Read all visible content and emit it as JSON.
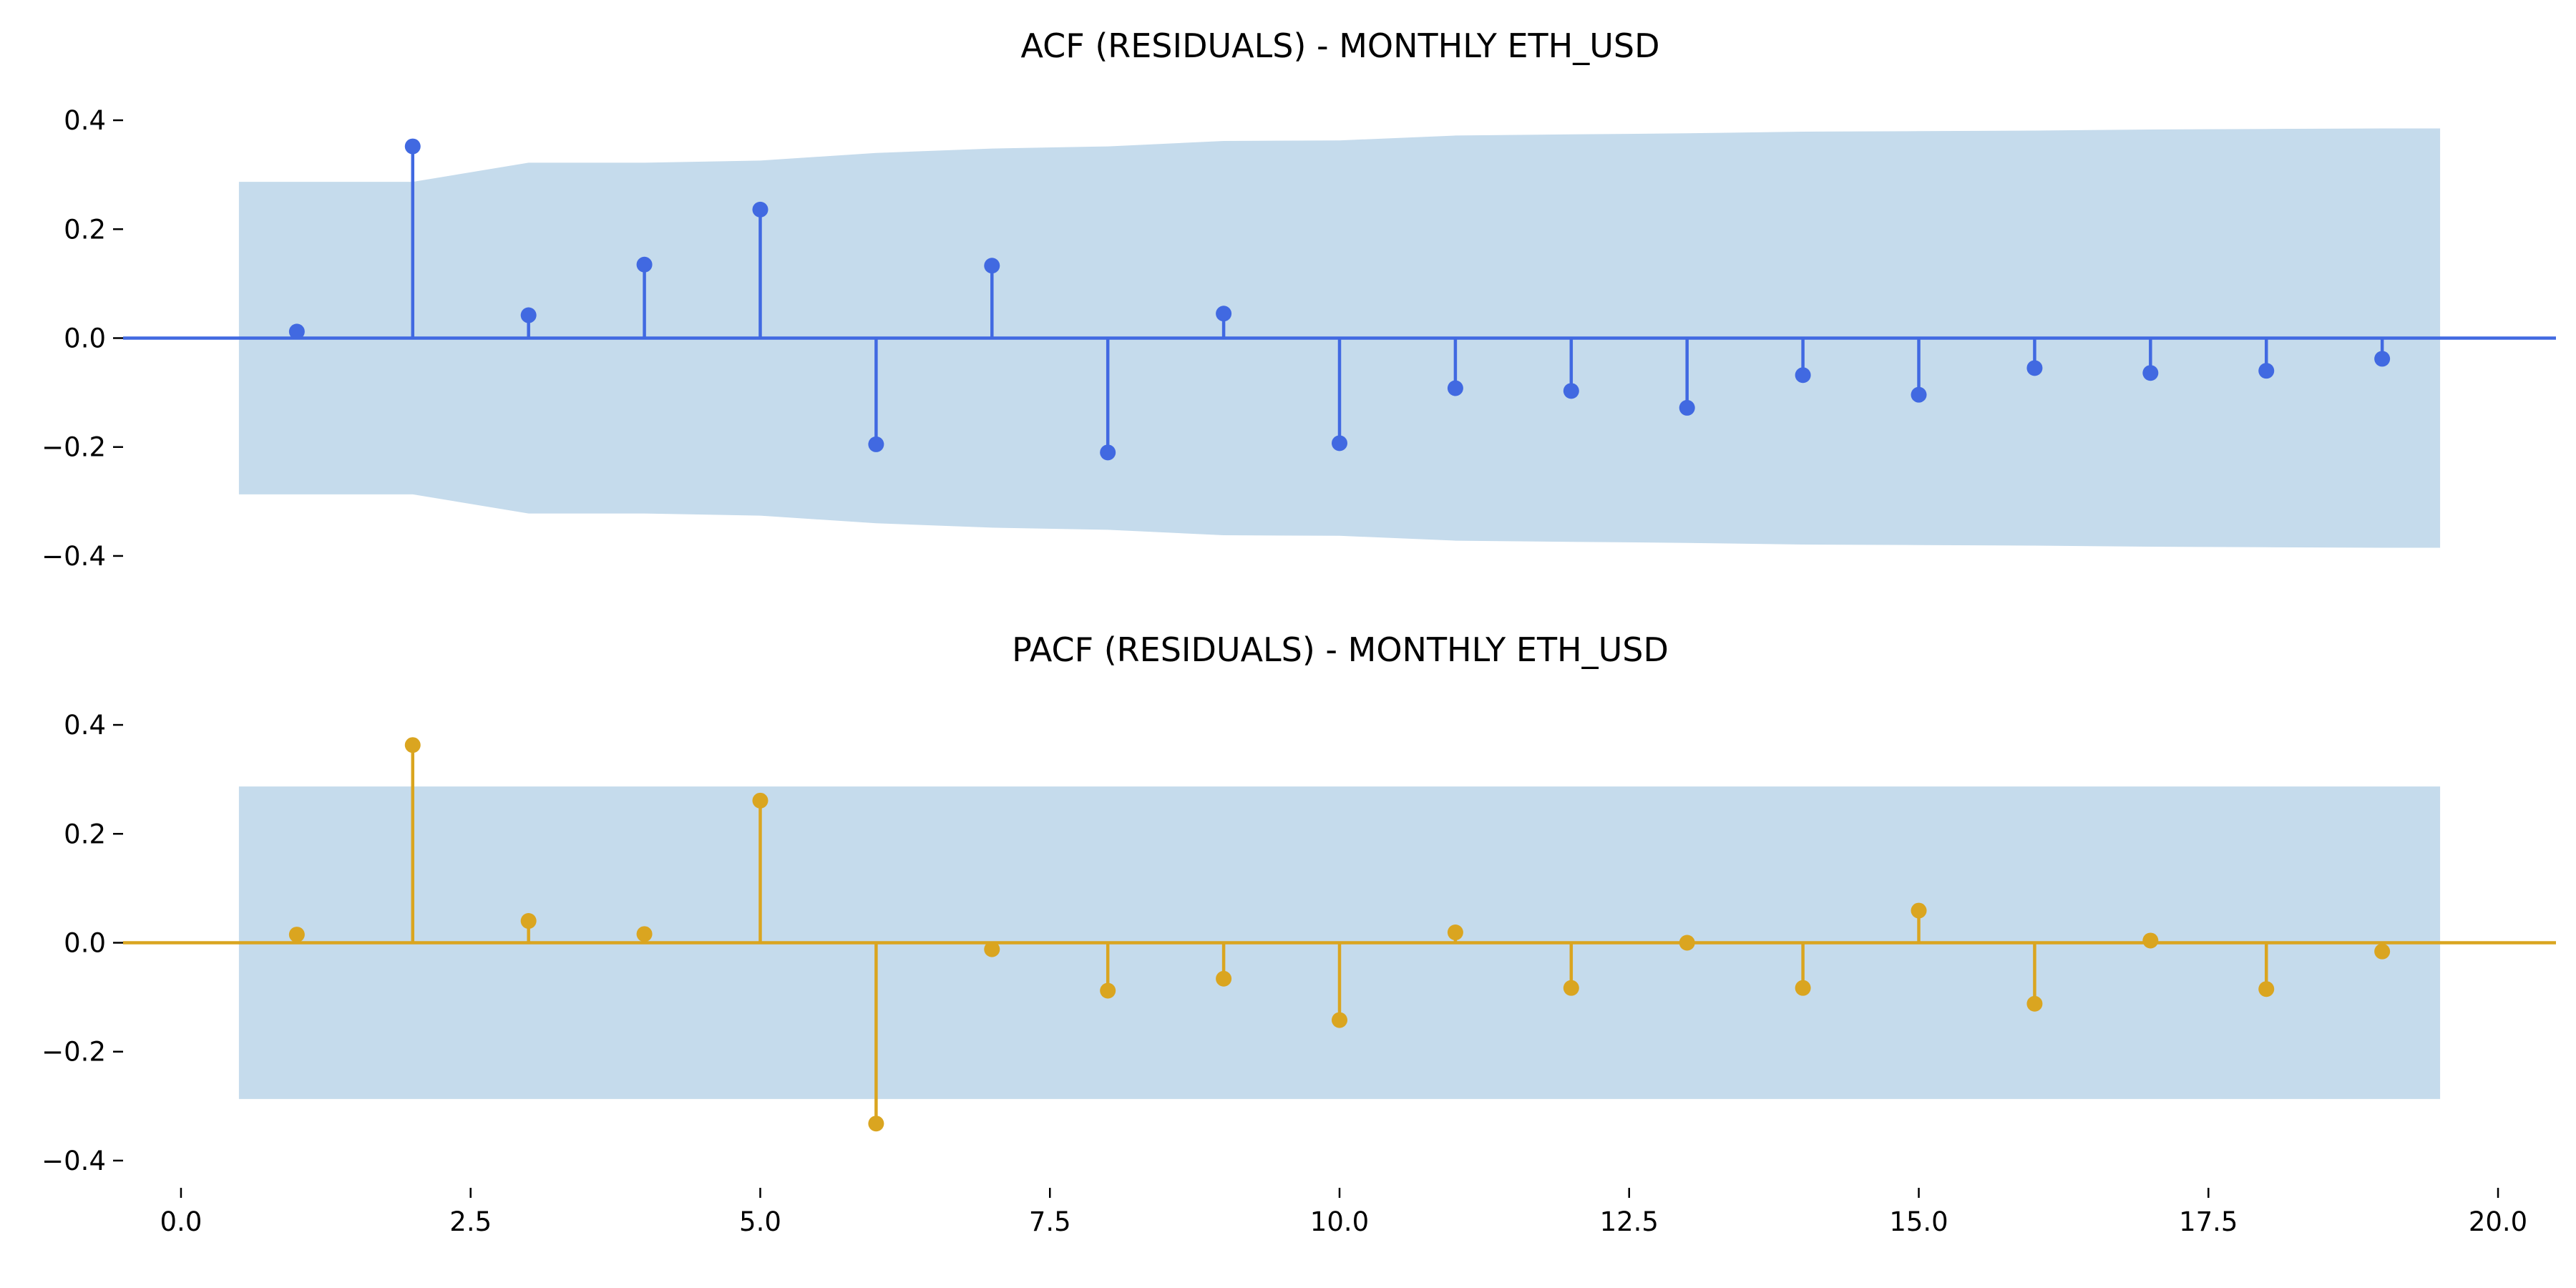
{
  "chart_data": [
    {
      "type": "stem",
      "title": "ACF (RESIDUALS) - MONTHLY ETH_USD",
      "xlabel": "",
      "ylabel": "",
      "xlim": [
        -0.5,
        20.5
      ],
      "ylim": [
        -0.45,
        0.45
      ],
      "yticks": [
        "0.4",
        "0.2",
        "0.0",
        "−0.2",
        "−0.4"
      ],
      "ytick_values": [
        0.4,
        0.2,
        0.0,
        -0.2,
        -0.4
      ],
      "color": "#4169e1",
      "band_color": "#c5dbec",
      "x": [
        1,
        2,
        3,
        4,
        5,
        6,
        7,
        8,
        9,
        10,
        11,
        12,
        13,
        14,
        15,
        16,
        17,
        18,
        19
      ],
      "values": [
        0.012,
        0.352,
        0.042,
        0.135,
        0.236,
        -0.195,
        0.133,
        -0.21,
        0.045,
        -0.193,
        -0.092,
        -0.097,
        -0.128,
        -0.068,
        -0.104,
        -0.055,
        -0.064,
        -0.06,
        -0.038
      ],
      "confidence_band": {
        "x": [
          0.5,
          1.5,
          2,
          3,
          4,
          5,
          6,
          7,
          8,
          9,
          10,
          11,
          12,
          13,
          14,
          15,
          16,
          17,
          18,
          19,
          19.5
        ],
        "upper": [
          0.287,
          0.287,
          0.287,
          0.322,
          0.322,
          0.326,
          0.34,
          0.348,
          0.352,
          0.362,
          0.363,
          0.372,
          0.374,
          0.376,
          0.379,
          0.38,
          0.381,
          0.383,
          0.384,
          0.385,
          0.385
        ]
      },
      "grid": false
    },
    {
      "type": "stem",
      "title": "PACF (RESIDUALS) - MONTHLY ETH_USD",
      "xlabel": "",
      "ylabel": "",
      "xlim": [
        -0.5,
        20.5
      ],
      "ylim": [
        -0.45,
        0.45
      ],
      "yticks": [
        "0.4",
        "0.2",
        "0.0",
        "−0.2",
        "−0.4"
      ],
      "ytick_values": [
        0.4,
        0.2,
        0.0,
        -0.2,
        -0.4
      ],
      "xticks": [
        "0.0",
        "2.5",
        "5.0",
        "7.5",
        "10.0",
        "12.5",
        "15.0",
        "17.5",
        "20.0"
      ],
      "xtick_values": [
        0,
        2.5,
        5,
        7.5,
        10,
        12.5,
        15,
        17.5,
        20
      ],
      "color": "#daa520",
      "band_color": "#c5dbec",
      "x": [
        1,
        2,
        3,
        4,
        5,
        6,
        7,
        8,
        9,
        10,
        11,
        12,
        13,
        14,
        15,
        16,
        17,
        18,
        19
      ],
      "values": [
        0.015,
        0.363,
        0.04,
        0.016,
        0.261,
        -0.332,
        -0.012,
        -0.088,
        -0.066,
        -0.142,
        0.019,
        -0.083,
        0.0,
        -0.083,
        0.059,
        -0.112,
        0.004,
        -0.085,
        -0.016
      ],
      "confidence_band": {
        "x": [
          0.5,
          19.5
        ],
        "upper": [
          0.287,
          0.287
        ]
      },
      "grid": false
    }
  ]
}
